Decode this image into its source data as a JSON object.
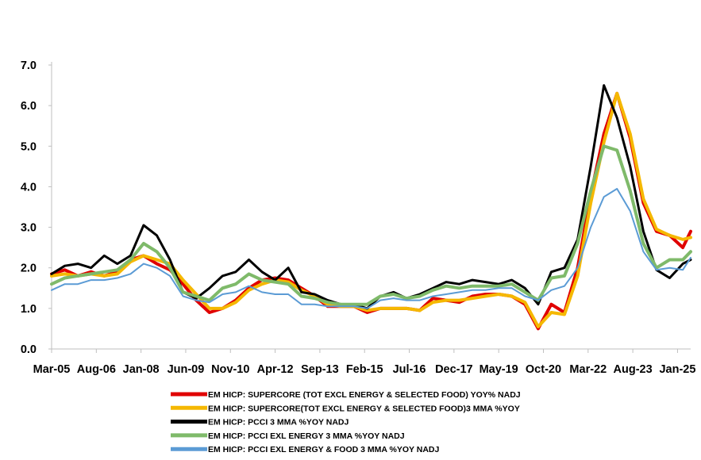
{
  "chart_data": {
    "type": "line",
    "title": "",
    "xlabel": "",
    "ylabel": "",
    "ylim": [
      0.0,
      7.0
    ],
    "yticks": [
      "0.0",
      "1.0",
      "2.0",
      "3.0",
      "4.0",
      "5.0",
      "6.0",
      "7.0"
    ],
    "xticks": [
      "Mar-05",
      "Aug-06",
      "Jan-08",
      "Jun-09",
      "Nov-10",
      "Apr-12",
      "Sep-13",
      "Feb-15",
      "Jul-16",
      "Dec-17",
      "May-19",
      "Oct-20",
      "Mar-22",
      "Aug-23",
      "Jan-25"
    ],
    "grid": false,
    "legend_position": "bottom",
    "series": [
      {
        "name": "EM HICP: SUPERCORE (TOT EXCL ENERGY & SELECTED FOOD) YOY% NADJ",
        "color": "#e00000",
        "points": [
          [
            "Mar-05",
            1.85
          ],
          [
            "Aug-05",
            1.95
          ],
          [
            "Jan-06",
            1.8
          ],
          [
            "Jun-06",
            1.9
          ],
          [
            "Nov-06",
            1.8
          ],
          [
            "Apr-07",
            1.9
          ],
          [
            "Sep-07",
            2.2
          ],
          [
            "Feb-08",
            2.3
          ],
          [
            "Jul-08",
            2.1
          ],
          [
            "Dec-08",
            1.95
          ],
          [
            "May-09",
            1.6
          ],
          [
            "Oct-09",
            1.2
          ],
          [
            "Mar-10",
            0.9
          ],
          [
            "Aug-10",
            1.0
          ],
          [
            "Jan-11",
            1.2
          ],
          [
            "Jun-11",
            1.5
          ],
          [
            "Nov-11",
            1.7
          ],
          [
            "Apr-12",
            1.75
          ],
          [
            "Sep-12",
            1.7
          ],
          [
            "Feb-13",
            1.5
          ],
          [
            "Jul-13",
            1.3
          ],
          [
            "Dec-13",
            1.05
          ],
          [
            "May-14",
            1.05
          ],
          [
            "Oct-14",
            1.05
          ],
          [
            "Mar-15",
            0.9
          ],
          [
            "Aug-15",
            1.0
          ],
          [
            "Jan-16",
            1.0
          ],
          [
            "Jun-16",
            1.0
          ],
          [
            "Nov-16",
            0.95
          ],
          [
            "Apr-17",
            1.25
          ],
          [
            "Sep-17",
            1.2
          ],
          [
            "Feb-18",
            1.15
          ],
          [
            "Jul-18",
            1.3
          ],
          [
            "Dec-18",
            1.35
          ],
          [
            "May-19",
            1.35
          ],
          [
            "Oct-19",
            1.3
          ],
          [
            "Mar-20",
            1.1
          ],
          [
            "Aug-20",
            0.5
          ],
          [
            "Jan-21",
            1.1
          ],
          [
            "Jun-21",
            0.9
          ],
          [
            "Nov-21",
            2.0
          ],
          [
            "Apr-22",
            3.8
          ],
          [
            "Sep-22",
            5.3
          ],
          [
            "Feb-23",
            6.3
          ],
          [
            "Jul-23",
            5.2
          ],
          [
            "Dec-23",
            3.6
          ],
          [
            "May-24",
            2.9
          ],
          [
            "Oct-24",
            2.8
          ],
          [
            "Mar-25",
            2.5
          ],
          [
            "Jun-25",
            2.9
          ]
        ]
      },
      {
        "name": "EM HICP: SUPERCORE(TOT EXCL ENERGY & SELECTED FOOD)3 MMA %YOY",
        "color": "#f5b800",
        "points": [
          [
            "Mar-05",
            1.8
          ],
          [
            "Aug-05",
            1.85
          ],
          [
            "Jan-06",
            1.8
          ],
          [
            "Jun-06",
            1.85
          ],
          [
            "Nov-06",
            1.8
          ],
          [
            "Apr-07",
            1.85
          ],
          [
            "Sep-07",
            2.15
          ],
          [
            "Feb-08",
            2.3
          ],
          [
            "Jul-08",
            2.2
          ],
          [
            "Dec-08",
            2.1
          ],
          [
            "May-09",
            1.7
          ],
          [
            "Oct-09",
            1.35
          ],
          [
            "Mar-10",
            1.0
          ],
          [
            "Aug-10",
            1.0
          ],
          [
            "Jan-11",
            1.15
          ],
          [
            "Jun-11",
            1.45
          ],
          [
            "Nov-11",
            1.6
          ],
          [
            "Apr-12",
            1.7
          ],
          [
            "Sep-12",
            1.65
          ],
          [
            "Feb-13",
            1.45
          ],
          [
            "Jul-13",
            1.3
          ],
          [
            "Dec-13",
            1.1
          ],
          [
            "May-14",
            1.05
          ],
          [
            "Oct-14",
            1.05
          ],
          [
            "Mar-15",
            0.95
          ],
          [
            "Aug-15",
            1.0
          ],
          [
            "Jan-16",
            1.0
          ],
          [
            "Jun-16",
            1.0
          ],
          [
            "Nov-16",
            0.95
          ],
          [
            "Apr-17",
            1.15
          ],
          [
            "Sep-17",
            1.2
          ],
          [
            "Feb-18",
            1.2
          ],
          [
            "Jul-18",
            1.25
          ],
          [
            "Dec-18",
            1.3
          ],
          [
            "May-19",
            1.35
          ],
          [
            "Oct-19",
            1.3
          ],
          [
            "Mar-20",
            1.15
          ],
          [
            "Aug-20",
            0.55
          ],
          [
            "Jan-21",
            0.9
          ],
          [
            "Jun-21",
            0.85
          ],
          [
            "Nov-21",
            1.8
          ],
          [
            "Apr-22",
            3.6
          ],
          [
            "Sep-22",
            5.1
          ],
          [
            "Feb-23",
            6.3
          ],
          [
            "Jul-23",
            5.3
          ],
          [
            "Dec-23",
            3.7
          ],
          [
            "May-24",
            2.95
          ],
          [
            "Oct-24",
            2.8
          ],
          [
            "Mar-25",
            2.7
          ],
          [
            "Jun-25",
            2.75
          ]
        ]
      },
      {
        "name": "EM HICP: PCCI 3 MMA %YOY NADJ",
        "color": "#000000",
        "points": [
          [
            "Mar-05",
            1.85
          ],
          [
            "Aug-05",
            2.05
          ],
          [
            "Jan-06",
            2.1
          ],
          [
            "Jun-06",
            2.0
          ],
          [
            "Nov-06",
            2.3
          ],
          [
            "Apr-07",
            2.1
          ],
          [
            "Sep-07",
            2.3
          ],
          [
            "Feb-08",
            3.05
          ],
          [
            "Jul-08",
            2.8
          ],
          [
            "Dec-08",
            2.2
          ],
          [
            "May-09",
            1.4
          ],
          [
            "Oct-09",
            1.25
          ],
          [
            "Mar-10",
            1.5
          ],
          [
            "Aug-10",
            1.8
          ],
          [
            "Jan-11",
            1.9
          ],
          [
            "Jun-11",
            2.2
          ],
          [
            "Nov-11",
            1.9
          ],
          [
            "Apr-12",
            1.7
          ],
          [
            "Sep-12",
            2.0
          ],
          [
            "Feb-13",
            1.4
          ],
          [
            "Jul-13",
            1.35
          ],
          [
            "Dec-13",
            1.2
          ],
          [
            "May-14",
            1.1
          ],
          [
            "Oct-14",
            1.1
          ],
          [
            "Mar-15",
            1.0
          ],
          [
            "Aug-15",
            1.3
          ],
          [
            "Jan-16",
            1.4
          ],
          [
            "Jun-16",
            1.25
          ],
          [
            "Nov-16",
            1.35
          ],
          [
            "Apr-17",
            1.5
          ],
          [
            "Sep-17",
            1.65
          ],
          [
            "Feb-18",
            1.6
          ],
          [
            "Jul-18",
            1.7
          ],
          [
            "Dec-18",
            1.65
          ],
          [
            "May-19",
            1.6
          ],
          [
            "Oct-19",
            1.7
          ],
          [
            "Mar-20",
            1.5
          ],
          [
            "Aug-20",
            1.1
          ],
          [
            "Jan-21",
            1.9
          ],
          [
            "Jun-21",
            2.0
          ],
          [
            "Nov-21",
            2.7
          ],
          [
            "Apr-22",
            4.5
          ],
          [
            "Sep-22",
            6.5
          ],
          [
            "Feb-23",
            5.7
          ],
          [
            "Jul-23",
            4.5
          ],
          [
            "Dec-23",
            2.9
          ],
          [
            "May-24",
            1.95
          ],
          [
            "Oct-24",
            1.75
          ],
          [
            "Mar-25",
            2.1
          ],
          [
            "Jun-25",
            2.2
          ]
        ]
      },
      {
        "name": "EM HICP: PCCI EXL ENERGY 3 MMA %YOY NADJ",
        "color": "#7fba6a",
        "points": [
          [
            "Mar-05",
            1.6
          ],
          [
            "Aug-05",
            1.75
          ],
          [
            "Jan-06",
            1.8
          ],
          [
            "Jun-06",
            1.85
          ],
          [
            "Nov-06",
            1.9
          ],
          [
            "Apr-07",
            1.95
          ],
          [
            "Sep-07",
            2.2
          ],
          [
            "Feb-08",
            2.6
          ],
          [
            "Jul-08",
            2.4
          ],
          [
            "Dec-08",
            2.0
          ],
          [
            "May-09",
            1.4
          ],
          [
            "Oct-09",
            1.3
          ],
          [
            "Mar-10",
            1.2
          ],
          [
            "Aug-10",
            1.5
          ],
          [
            "Jan-11",
            1.6
          ],
          [
            "Jun-11",
            1.85
          ],
          [
            "Nov-11",
            1.7
          ],
          [
            "Apr-12",
            1.65
          ],
          [
            "Sep-12",
            1.6
          ],
          [
            "Feb-13",
            1.3
          ],
          [
            "Jul-13",
            1.25
          ],
          [
            "Dec-13",
            1.15
          ],
          [
            "May-14",
            1.1
          ],
          [
            "Oct-14",
            1.1
          ],
          [
            "Mar-15",
            1.1
          ],
          [
            "Aug-15",
            1.3
          ],
          [
            "Jan-16",
            1.35
          ],
          [
            "Jun-16",
            1.25
          ],
          [
            "Nov-16",
            1.3
          ],
          [
            "Apr-17",
            1.45
          ],
          [
            "Sep-17",
            1.55
          ],
          [
            "Feb-18",
            1.5
          ],
          [
            "Jul-18",
            1.55
          ],
          [
            "Dec-18",
            1.55
          ],
          [
            "May-19",
            1.55
          ],
          [
            "Oct-19",
            1.6
          ],
          [
            "Mar-20",
            1.4
          ],
          [
            "Aug-20",
            1.2
          ],
          [
            "Jan-21",
            1.75
          ],
          [
            "Jun-21",
            1.8
          ],
          [
            "Nov-21",
            2.6
          ],
          [
            "Apr-22",
            3.9
          ],
          [
            "Sep-22",
            5.0
          ],
          [
            "Feb-23",
            4.9
          ],
          [
            "Jul-23",
            3.9
          ],
          [
            "Dec-23",
            2.6
          ],
          [
            "May-24",
            2.0
          ],
          [
            "Oct-24",
            2.2
          ],
          [
            "Mar-25",
            2.2
          ],
          [
            "Jun-25",
            2.4
          ]
        ]
      },
      {
        "name": "EM HICP: PCCI EXL ENERGY & FOOD 3 MMA %YOY NADJ",
        "color": "#5b9bd5",
        "points": [
          [
            "Mar-05",
            1.45
          ],
          [
            "Aug-05",
            1.6
          ],
          [
            "Jan-06",
            1.6
          ],
          [
            "Jun-06",
            1.7
          ],
          [
            "Nov-06",
            1.7
          ],
          [
            "Apr-07",
            1.75
          ],
          [
            "Sep-07",
            1.85
          ],
          [
            "Feb-08",
            2.1
          ],
          [
            "Jul-08",
            2.0
          ],
          [
            "Dec-08",
            1.8
          ],
          [
            "May-09",
            1.3
          ],
          [
            "Oct-09",
            1.2
          ],
          [
            "Mar-10",
            1.15
          ],
          [
            "Aug-10",
            1.35
          ],
          [
            "Jan-11",
            1.4
          ],
          [
            "Jun-11",
            1.55
          ],
          [
            "Nov-11",
            1.4
          ],
          [
            "Apr-12",
            1.35
          ],
          [
            "Sep-12",
            1.35
          ],
          [
            "Feb-13",
            1.1
          ],
          [
            "Jul-13",
            1.1
          ],
          [
            "Dec-13",
            1.05
          ],
          [
            "May-14",
            1.05
          ],
          [
            "Oct-14",
            1.05
          ],
          [
            "Mar-15",
            1.0
          ],
          [
            "Aug-15",
            1.2
          ],
          [
            "Jan-16",
            1.25
          ],
          [
            "Jun-16",
            1.2
          ],
          [
            "Nov-16",
            1.2
          ],
          [
            "Apr-17",
            1.3
          ],
          [
            "Sep-17",
            1.35
          ],
          [
            "Feb-18",
            1.4
          ],
          [
            "Jul-18",
            1.45
          ],
          [
            "Dec-18",
            1.45
          ],
          [
            "May-19",
            1.5
          ],
          [
            "Oct-19",
            1.5
          ],
          [
            "Mar-20",
            1.3
          ],
          [
            "Aug-20",
            1.2
          ],
          [
            "Jan-21",
            1.45
          ],
          [
            "Jun-21",
            1.55
          ],
          [
            "Nov-21",
            2.0
          ],
          [
            "Apr-22",
            3.0
          ],
          [
            "Sep-22",
            3.75
          ],
          [
            "Feb-23",
            3.95
          ],
          [
            "Jul-23",
            3.4
          ],
          [
            "Dec-23",
            2.4
          ],
          [
            "May-24",
            1.95
          ],
          [
            "Oct-24",
            2.0
          ],
          [
            "Mar-25",
            1.95
          ],
          [
            "Jun-25",
            2.25
          ]
        ]
      }
    ]
  }
}
